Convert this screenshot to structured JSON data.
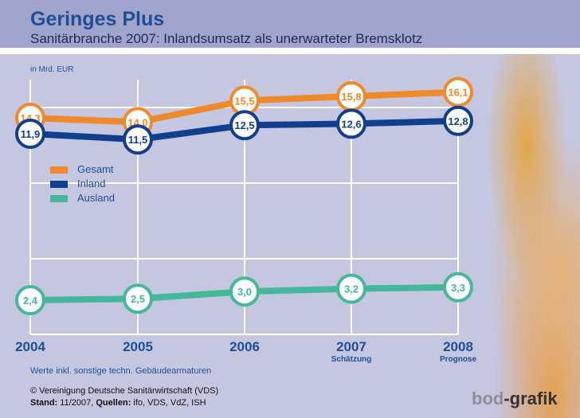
{
  "header": {
    "title": "Geringes Plus",
    "subtitle": "Sanitärbranche 2007: Inlandsumsatz als unerwarteter Bremsklotz"
  },
  "chart_data": {
    "type": "line",
    "ylabel": "in Mrd. EUR",
    "categories": [
      "2004",
      "2005",
      "2006",
      "2007",
      "2008"
    ],
    "category_notes": [
      "",
      "",
      "",
      "Schätzung",
      "Prognose"
    ],
    "grid": true,
    "legend_position": "left",
    "series": [
      {
        "name": "Gesamt",
        "color": "#ef8a2c",
        "values": [
          14.3,
          14.0,
          15.5,
          15.8,
          16.1
        ],
        "labels": [
          "14,3",
          "14,0",
          "15,5",
          "15,8",
          "16,1"
        ]
      },
      {
        "name": "Inland",
        "color": "#123f8c",
        "values": [
          11.9,
          11.5,
          12.5,
          12.6,
          12.8
        ],
        "labels": [
          "11,9",
          "11,5",
          "12,5",
          "12,6",
          "12,8"
        ]
      },
      {
        "name": "Ausland",
        "color": "#45b89a",
        "values": [
          2.4,
          2.5,
          3.0,
          3.2,
          3.3
        ],
        "labels": [
          "2,4",
          "2,5",
          "3,0",
          "3,2",
          "3,3"
        ]
      }
    ]
  },
  "footer": {
    "note": "Werte inkl. sonstige techn. Gebäudearmaturen",
    "copyright": "© Vereinigung Deutsche Sanitärwirtschaft (VDS)",
    "stand_label": "Stand:",
    "stand_value": " 11/2007, ",
    "sources_label": "Quellen:",
    "sources_value": " ifo, VDS, VdZ, ISH",
    "logo": "bod-grafik"
  }
}
